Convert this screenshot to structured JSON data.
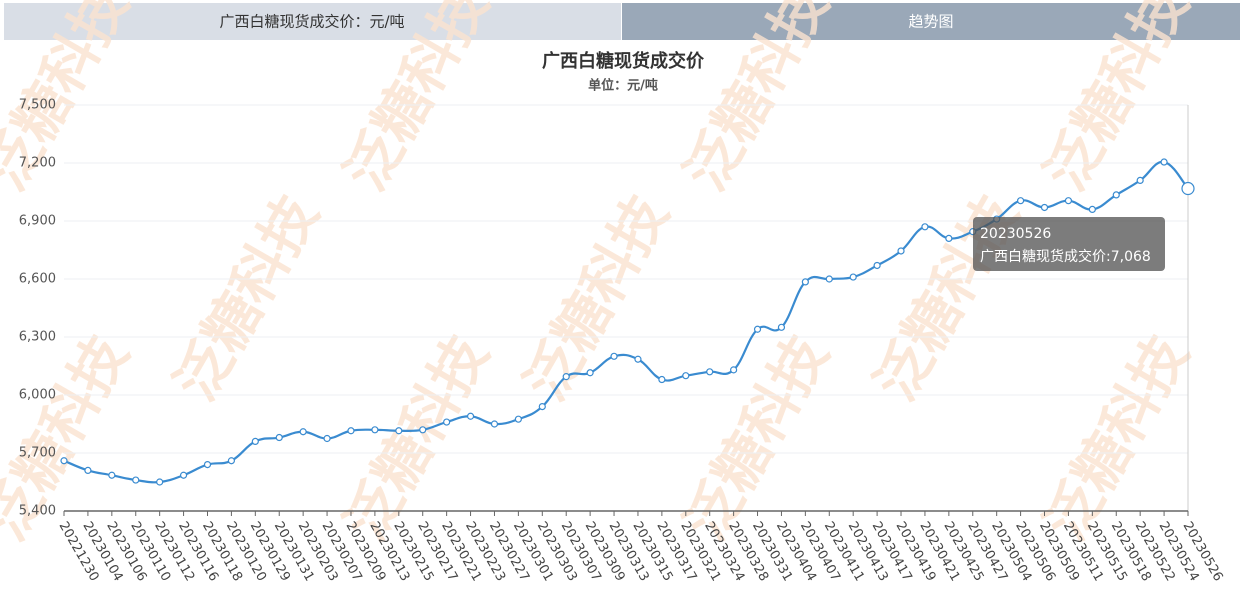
{
  "tabs": [
    "广西白糖现货成交价：元/吨",
    "趋势图"
  ],
  "watermark": "泛糖科技",
  "chart_data": {
    "type": "line",
    "title": "广西白糖现货成交价",
    "subtitle": "单位：元/吨",
    "categories": [
      "20221230",
      "20230104",
      "20230106",
      "20230110",
      "20230112",
      "20230116",
      "20230118",
      "20230120",
      "20230129",
      "20230131",
      "20230203",
      "20230207",
      "20230209",
      "20230213",
      "20230215",
      "20230217",
      "20230221",
      "20230223",
      "20230227",
      "20230301",
      "20230303",
      "20230307",
      "20230309",
      "20230313",
      "20230315",
      "20230317",
      "20230321",
      "20230324",
      "20230328",
      "20230331",
      "20230404",
      "20230407",
      "20230411",
      "20230413",
      "20230417",
      "20230419",
      "20230421",
      "20230425",
      "20230427",
      "20230504",
      "20230506",
      "20230509",
      "20230511",
      "20230515",
      "20230518",
      "20230522",
      "20230524",
      "20230526"
    ],
    "series": [
      {
        "name": "广西白糖现货成交价",
        "color": "#3a8bd0",
        "values": [
          5660,
          5610,
          5585,
          5560,
          5550,
          5585,
          5640,
          5660,
          5760,
          5780,
          5810,
          5775,
          5815,
          5820,
          5815,
          5820,
          5860,
          5890,
          5850,
          5875,
          5940,
          6095,
          6115,
          6200,
          6185,
          6080,
          6100,
          6120,
          6130,
          6340,
          6350,
          6585,
          6600,
          6610,
          6670,
          6745,
          6870,
          6810,
          6845,
          6910,
          7005,
          6970,
          7005,
          6960,
          7035,
          7110,
          7205,
          7068
        ]
      }
    ],
    "ylim": [
      5400,
      7500
    ],
    "yticks": [
      {
        "value": 5400,
        "label": "5,400"
      },
      {
        "value": 5700,
        "label": "5,700"
      },
      {
        "value": 6000,
        "label": "6,000"
      },
      {
        "value": 6300,
        "label": "6,300"
      },
      {
        "value": 6600,
        "label": "6,600"
      },
      {
        "value": 6900,
        "label": "6,900"
      },
      {
        "value": 7200,
        "label": "7,200"
      },
      {
        "value": 7500,
        "label": "7,500"
      }
    ],
    "grid": true,
    "tooltip": {
      "label": "20230526",
      "text": "广西白糖现货成交价:7,068"
    }
  }
}
